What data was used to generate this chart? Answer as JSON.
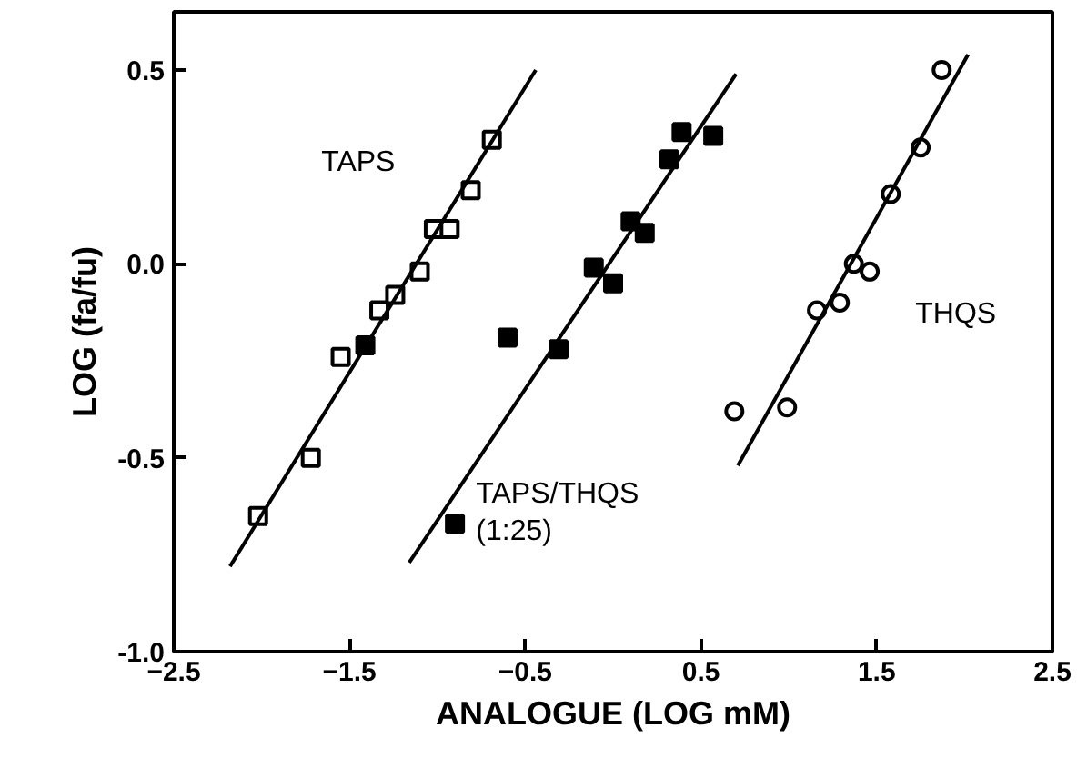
{
  "chart_data": {
    "type": "scatter",
    "xlabel": "ANALOGUE (LOG mM)",
    "ylabel": "LOG (fa/fu)",
    "xlim": [
      -2.5,
      2.5
    ],
    "ylim": [
      -1.0,
      0.65
    ],
    "xticks": [
      -2.5,
      -1.5,
      -0.5,
      0.5,
      1.5,
      2.5
    ],
    "yticks": [
      {
        "value": -1.0,
        "label": "-1.0"
      },
      {
        "value": -0.5,
        "label": "-0.5"
      },
      {
        "value": 0.0,
        "label": "0.0"
      },
      {
        "value": 0.5,
        "label": "0.5"
      }
    ],
    "grid": false,
    "series": [
      {
        "name": "TAPS",
        "marker": "square",
        "color": "#000000",
        "x": [
          -2.02,
          -1.72,
          -1.55,
          -1.33,
          -1.24,
          -1.1,
          -1.02,
          -0.93,
          -0.81,
          -0.69
        ],
        "values": [
          -0.65,
          -0.5,
          -0.24,
          -0.12,
          -0.08,
          -0.02,
          0.09,
          0.09,
          0.19,
          0.32
        ]
      },
      {
        "name": "TAPS/THQS\n(1:25)",
        "marker": "square",
        "color": "#000000",
        "x": [
          -1.41,
          -0.9,
          -0.6,
          -0.31,
          -0.11,
          0.0,
          0.1,
          0.18,
          0.32,
          0.39,
          0.57
        ],
        "values": [
          -0.21,
          -0.67,
          -0.19,
          -0.22,
          -0.01,
          -0.05,
          0.11,
          0.08,
          0.27,
          0.34,
          0.33
        ]
      },
      {
        "name": "THQS",
        "marker": "circle",
        "color": "#000000",
        "x": [
          0.69,
          0.99,
          1.16,
          1.29,
          1.37,
          1.46,
          1.58,
          1.75,
          1.87
        ],
        "values": [
          -0.38,
          -0.37,
          -0.12,
          -0.1,
          0.0,
          -0.02,
          0.18,
          0.3,
          0.5
        ]
      },
      {
        "type": "line",
        "color": "#000000",
        "line_style": "solid",
        "x": [
          -2.18,
          -0.44
        ],
        "values": [
          -0.78,
          0.5
        ]
      },
      {
        "type": "line",
        "color": "#000000",
        "line_style": "solid",
        "x": [
          -1.16,
          0.7
        ],
        "values": [
          -0.77,
          0.49
        ]
      },
      {
        "type": "line",
        "color": "#000000",
        "line_style": "solid",
        "x": [
          0.71,
          2.02
        ],
        "values": [
          -0.52,
          0.54
        ]
      }
    ]
  }
}
